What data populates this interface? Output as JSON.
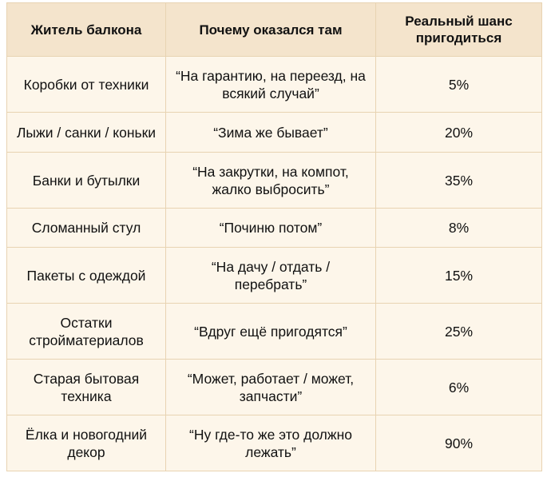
{
  "table": {
    "headers": [
      "Житель балкона",
      "Почему оказался там",
      "Реальный шанс пригодиться"
    ],
    "rows": [
      {
        "item": "Коробки от техники",
        "reason": "“На гарантию, на переезд, на всякий случай”",
        "chance": "5%"
      },
      {
        "item": "Лыжи / санки / коньки",
        "reason": "“Зима же бывает”",
        "chance": "20%"
      },
      {
        "item": "Банки и бутылки",
        "reason": "“На закрутки, на компот, жалко выбросить”",
        "chance": "35%"
      },
      {
        "item": "Сломанный стул",
        "reason": "“Починю потом”",
        "chance": "8%"
      },
      {
        "item": "Пакеты с одеждой",
        "reason": "“На дачу / отдать / перебрать”",
        "chance": "15%"
      },
      {
        "item": "Остатки стройматериалов",
        "reason": "“Вдруг ещё пригодятся”",
        "chance": "25%"
      },
      {
        "item": "Старая бытовая техника",
        "reason": "“Может, работает / может, запчасти”",
        "chance": "6%"
      },
      {
        "item": "Ёлка и новогодний декор",
        "reason": "“Ну где-то же это должно лежать”",
        "chance": "90%"
      }
    ]
  }
}
